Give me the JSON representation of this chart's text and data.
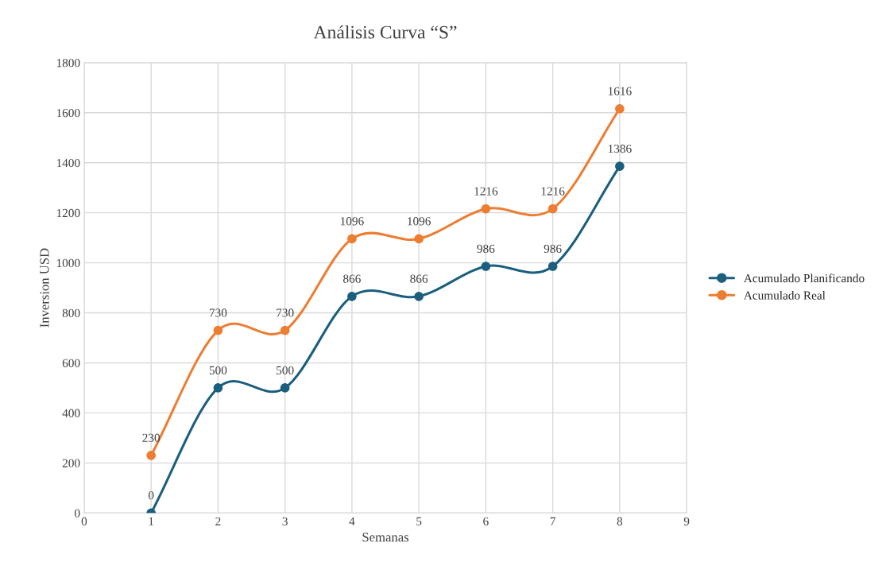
{
  "chart_data": {
    "type": "line",
    "title": "Análisis Curva “S”",
    "xlabel": "Semanas",
    "ylabel": "Inversion USD",
    "x": [
      1,
      2,
      3,
      4,
      5,
      6,
      7,
      8
    ],
    "series": [
      {
        "name": "Acumulado Planificando",
        "color": "#1b5e7e",
        "values": [
          0,
          500,
          500,
          866,
          866,
          986,
          986,
          1386
        ]
      },
      {
        "name": "Acumulado Real",
        "color": "#ed7d31",
        "values": [
          230,
          730,
          730,
          1096,
          1096,
          1216,
          1216,
          1616
        ]
      }
    ],
    "xlim": [
      0,
      9
    ],
    "xticks": [
      0,
      1,
      2,
      3,
      4,
      5,
      6,
      7,
      8,
      9
    ],
    "ylim": [
      0,
      1800
    ],
    "yticks": [
      0,
      200,
      400,
      600,
      800,
      1000,
      1200,
      1400,
      1600,
      1800
    ],
    "grid": true,
    "legend": "right",
    "marker": "circle",
    "line_style": "solid",
    "data_labels": true
  }
}
